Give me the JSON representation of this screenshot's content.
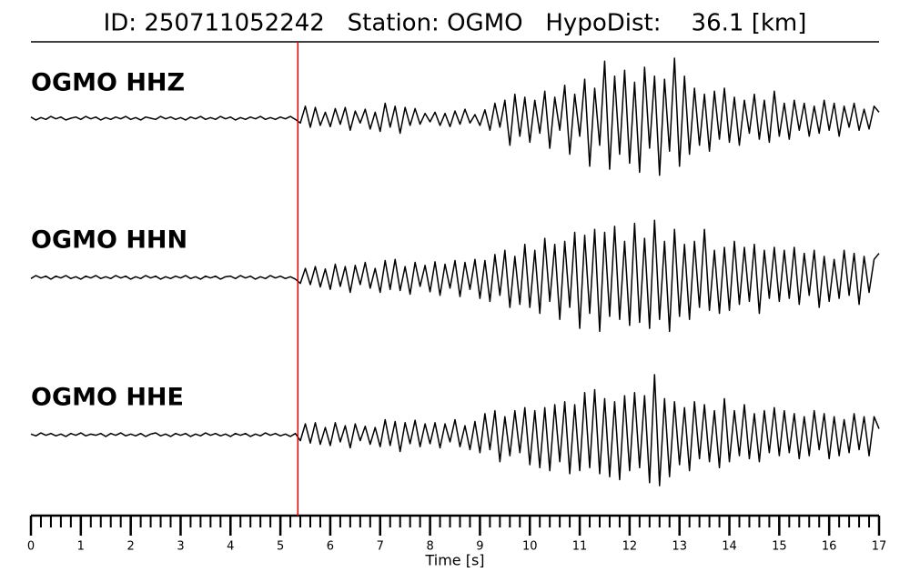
{
  "chart_data": {
    "type": "line",
    "title": "ID: 250711052242   Station: OGMO   HypoDist:    36.1 [km]",
    "xlabel": "Time [s]",
    "xlim": [
      0,
      17
    ],
    "xticks": [
      0,
      1,
      2,
      3,
      4,
      5,
      6,
      7,
      8,
      9,
      10,
      11,
      12,
      13,
      14,
      15,
      16,
      17
    ],
    "minor_tick_step": 0.2,
    "ylim": [
      -100,
      100
    ],
    "pick_time": 5.35,
    "pick_color": "#e00000",
    "label_color": "#4c9a0a",
    "x": [
      0,
      0.1,
      0.2,
      0.3,
      0.4,
      0.5,
      0.6,
      0.7,
      0.8,
      0.9,
      1,
      1.1,
      1.2,
      1.3,
      1.4,
      1.5,
      1.6,
      1.7,
      1.8,
      1.9,
      2,
      2.1,
      2.2,
      2.3,
      2.4,
      2.5,
      2.6,
      2.7,
      2.8,
      2.9,
      3,
      3.1,
      3.2,
      3.3,
      3.4,
      3.5,
      3.6,
      3.7,
      3.8,
      3.9,
      4,
      4.1,
      4.2,
      4.3,
      4.4,
      4.5,
      4.6,
      4.7,
      4.8,
      4.9,
      5,
      5.1,
      5.2,
      5.3,
      5.4,
      5.5,
      5.6,
      5.7,
      5.8,
      5.9,
      6,
      6.1,
      6.2,
      6.3,
      6.4,
      6.5,
      6.6,
      6.7,
      6.8,
      6.9,
      7,
      7.1,
      7.2,
      7.3,
      7.4,
      7.5,
      7.6,
      7.7,
      7.8,
      7.9,
      8,
      8.1,
      8.2,
      8.3,
      8.4,
      8.5,
      8.6,
      8.7,
      8.8,
      8.9,
      9,
      9.1,
      9.2,
      9.3,
      9.4,
      9.5,
      9.6,
      9.7,
      9.8,
      9.9,
      10,
      10.1,
      10.2,
      10.3,
      10.4,
      10.5,
      10.6,
      10.7,
      10.8,
      10.9,
      11,
      11.1,
      11.2,
      11.3,
      11.4,
      11.5,
      11.6,
      11.7,
      11.8,
      11.9,
      12,
      12.1,
      12.2,
      12.3,
      12.4,
      12.5,
      12.6,
      12.7,
      12.8,
      12.9,
      13,
      13.1,
      13.2,
      13.3,
      13.4,
      13.5,
      13.6,
      13.7,
      13.8,
      13.9,
      14,
      14.1,
      14.2,
      14.3,
      14.4,
      14.5,
      14.6,
      14.7,
      14.8,
      14.9,
      15,
      15.1,
      15.2,
      15.3,
      15.4,
      15.5,
      15.6,
      15.7,
      15.8,
      15.9,
      16,
      16.1,
      16.2,
      16.3,
      16.4,
      16.5,
      16.6,
      16.7,
      16.8,
      16.9,
      17
    ],
    "series": [
      {
        "name": "OGMO HHZ",
        "color": "#000000",
        "values": [
          2,
          -3,
          1,
          -2,
          3,
          -1,
          2,
          -3,
          0,
          2,
          -2,
          3,
          -1,
          2,
          -3,
          1,
          -2,
          2,
          -1,
          3,
          -2,
          1,
          -3,
          2,
          0,
          -2,
          3,
          -1,
          2,
          -2,
          1,
          -3,
          2,
          -1,
          3,
          -2,
          1,
          -2,
          3,
          -1,
          2,
          -3,
          1,
          -2,
          2,
          -1,
          3,
          -2,
          1,
          -2,
          2,
          -1,
          3,
          -2,
          -8,
          20,
          -15,
          18,
          -12,
          10,
          -14,
          16,
          -10,
          18,
          -20,
          12,
          -8,
          15,
          -18,
          10,
          -22,
          25,
          -15,
          20,
          -25,
          18,
          -12,
          16,
          -10,
          8,
          -6,
          10,
          -12,
          8,
          -14,
          12,
          -10,
          15,
          -8,
          6,
          -12,
          14,
          -20,
          25,
          -15,
          30,
          -45,
          40,
          -30,
          35,
          -40,
          30,
          -25,
          45,
          -50,
          35,
          -20,
          55,
          -60,
          40,
          -30,
          65,
          -80,
          50,
          -45,
          95,
          -85,
          70,
          -60,
          80,
          -75,
          60,
          -90,
          85,
          -50,
          70,
          -95,
          65,
          -55,
          100,
          -80,
          70,
          -60,
          50,
          -45,
          40,
          -55,
          45,
          -35,
          50,
          -40,
          35,
          -45,
          30,
          -25,
          40,
          -35,
          30,
          -40,
          45,
          -30,
          25,
          -35,
          30,
          -20,
          25,
          -30,
          20,
          -25,
          30,
          -20,
          25,
          -30,
          20,
          -15,
          25,
          -20,
          15,
          -18,
          20,
          10
        ]
      },
      {
        "name": "OGMO HHN",
        "color": "#000000",
        "values": [
          -2,
          3,
          -1,
          2,
          -3,
          2,
          -1,
          3,
          -2,
          1,
          -3,
          2,
          -1,
          3,
          -2,
          1,
          -2,
          3,
          -1,
          2,
          -3,
          1,
          -2,
          3,
          -1,
          2,
          -3,
          1,
          -2,
          2,
          -1,
          3,
          -2,
          1,
          -3,
          2,
          -1,
          2,
          -3,
          1,
          2,
          -2,
          3,
          -1,
          2,
          -3,
          1,
          -2,
          3,
          -1,
          2,
          -2,
          1,
          -3,
          -10,
          15,
          -12,
          18,
          -16,
          14,
          -20,
          22,
          -15,
          18,
          -25,
          20,
          -12,
          25,
          -18,
          15,
          -25,
          28,
          -20,
          30,
          -22,
          18,
          -28,
          25,
          -15,
          20,
          -24,
          26,
          -30,
          22,
          -18,
          28,
          -32,
          25,
          -20,
          30,
          -35,
          28,
          -40,
          38,
          -30,
          45,
          -50,
          35,
          -45,
          55,
          -50,
          45,
          -60,
          65,
          -40,
          55,
          -70,
          60,
          -50,
          75,
          -85,
          70,
          -60,
          80,
          -90,
          75,
          -65,
          85,
          -70,
          60,
          -80,
          90,
          -75,
          65,
          -85,
          95,
          -70,
          60,
          -90,
          80,
          -65,
          55,
          -70,
          60,
          -50,
          80,
          -55,
          45,
          -60,
          50,
          -55,
          60,
          -45,
          50,
          -40,
          55,
          -60,
          45,
          -35,
          50,
          -40,
          45,
          -35,
          50,
          -45,
          40,
          -30,
          45,
          -50,
          35,
          -40,
          30,
          -35,
          45,
          -30,
          40,
          -45,
          35,
          -25,
          30,
          40
        ]
      },
      {
        "name": "OGMO HHE",
        "color": "#000000",
        "values": [
          1,
          -2,
          3,
          -1,
          2,
          -2,
          1,
          -3,
          2,
          -1,
          3,
          -2,
          1,
          -1,
          2,
          -3,
          2,
          -1,
          3,
          -2,
          1,
          -2,
          2,
          -3,
          1,
          3,
          -2,
          1,
          -3,
          2,
          -1,
          2,
          -3,
          1,
          -2,
          3,
          -1,
          2,
          -2,
          1,
          -3,
          2,
          -1,
          2,
          -3,
          1,
          -2,
          3,
          -1,
          2,
          -2,
          1,
          -3,
          2,
          -10,
          18,
          -14,
          20,
          -16,
          12,
          -18,
          20,
          -12,
          15,
          -22,
          18,
          -10,
          14,
          -16,
          12,
          -20,
          25,
          -18,
          22,
          -28,
          20,
          -15,
          24,
          -20,
          18,
          -15,
          20,
          -22,
          18,
          -12,
          25,
          -20,
          15,
          -25,
          22,
          -30,
          35,
          -25,
          40,
          -45,
          30,
          -35,
          40,
          -30,
          45,
          -50,
          40,
          -55,
          45,
          -60,
          50,
          -45,
          55,
          -65,
          50,
          -60,
          70,
          -55,
          75,
          -65,
          60,
          -70,
          55,
          -75,
          65,
          -60,
          70,
          -55,
          65,
          -80,
          100,
          -85,
          60,
          -70,
          55,
          -50,
          45,
          -60,
          55,
          -40,
          50,
          -45,
          40,
          -55,
          60,
          -45,
          40,
          -35,
          50,
          -40,
          35,
          -45,
          40,
          -30,
          45,
          -35,
          40,
          -30,
          35,
          -40,
          30,
          -35,
          40,
          -25,
          35,
          -40,
          30,
          -35,
          25,
          -30,
          35,
          -25,
          30,
          -35,
          30,
          10
        ]
      }
    ]
  }
}
